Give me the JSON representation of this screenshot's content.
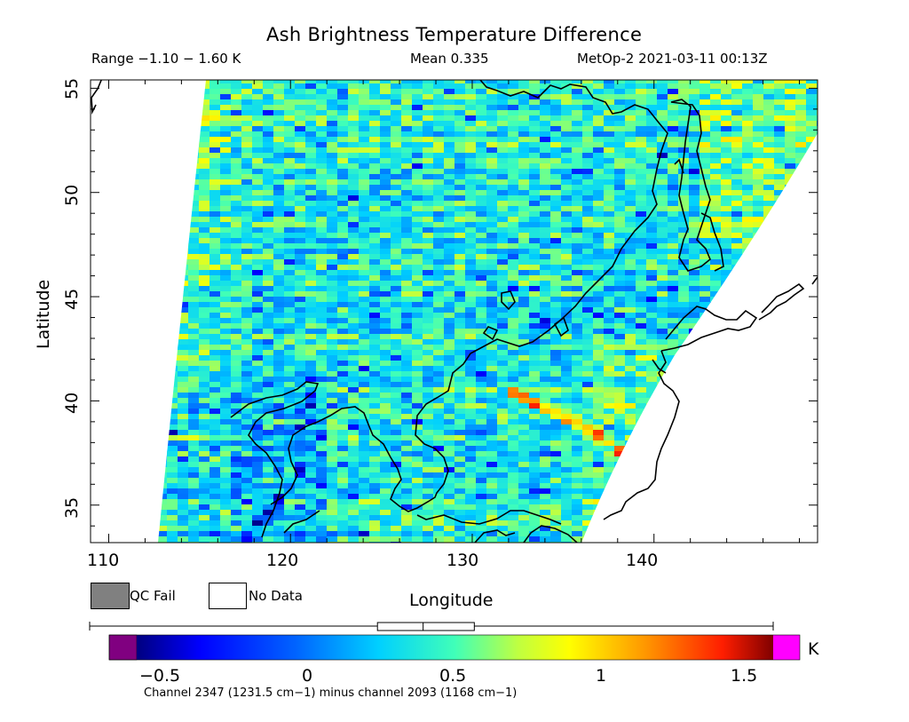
{
  "header": {
    "title": "Ash Brightness Temperature Difference",
    "range": "Range −1.10 − 1.60 K",
    "mean": "Mean 0.335",
    "satellite_time": "MetOp-2 2021-03-11 00:13Z"
  },
  "map": {
    "type": "satellite swath map",
    "xlabel": "Longitude",
    "ylabel": "Latitude",
    "lon_range": [
      109,
      149
    ],
    "lat_range": [
      33.2,
      55.4
    ],
    "x_ticks": [
      "110",
      "120",
      "130",
      "140"
    ],
    "y_ticks": [
      "35",
      "40",
      "45",
      "50",
      "55"
    ],
    "swath_color_dominant": "cyan-green"
  },
  "legend": {
    "qc_fail_label": "QC Fail",
    "qc_fail_color": "#808080",
    "no_data_label": "No Data",
    "no_data_color": "#ffffff"
  },
  "colorbar": {
    "unit": "K",
    "ticks": [
      "−0.5",
      "0",
      "0.5",
      "1",
      "1.5"
    ],
    "min": -0.7,
    "max": 1.6,
    "below_color": "#800080",
    "above_color": "#ff00ff",
    "caption": "Channel 2347 (1231.5 cm−1) minus channel 2093 (1168 cm−1)",
    "boxplot": {
      "whisker_low": -1.1,
      "q1": 0.17,
      "median": 0.335,
      "q3": 0.52,
      "whisker_high": 1.6
    }
  }
}
